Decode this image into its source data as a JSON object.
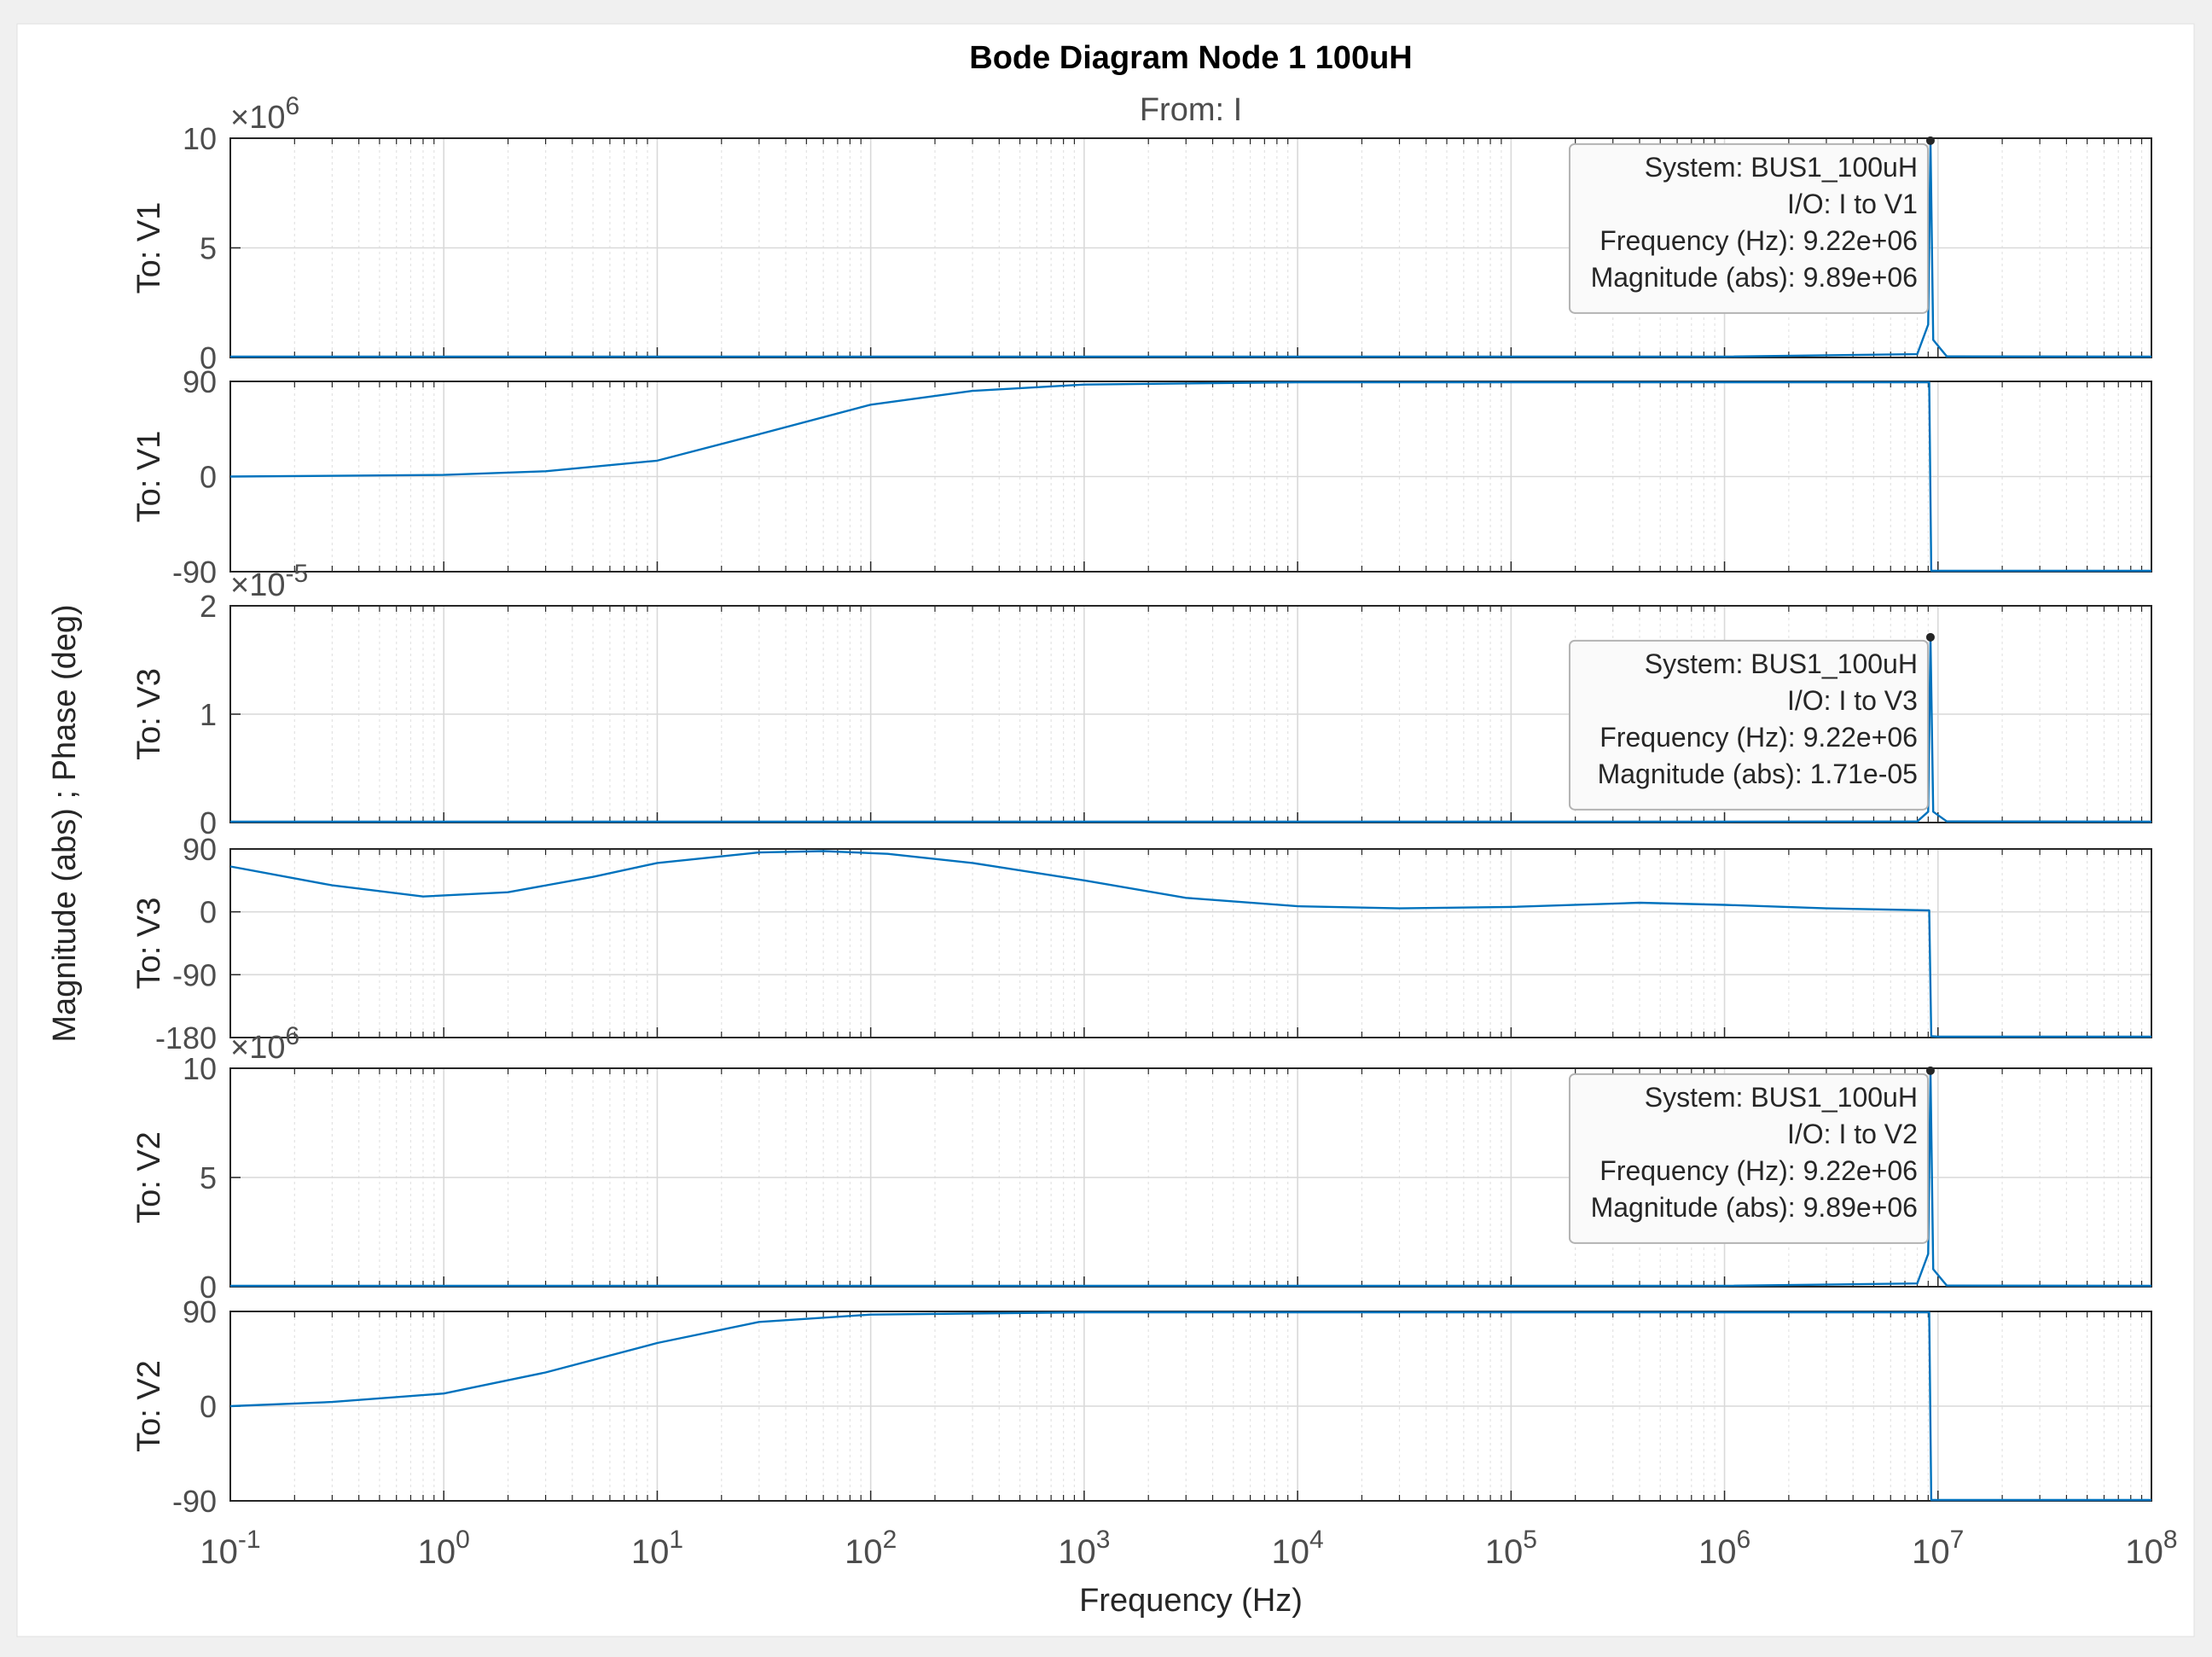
{
  "chart_data": {
    "type": "line",
    "title": "Bode Diagram Node 1 100uH",
    "subtitle": "From: I",
    "xlabel": "Frequency  (Hz)",
    "ylabel": "Magnitude (abs) ; Phase (deg)",
    "xscale": "log",
    "xlim": [
      0.1,
      100000000
    ],
    "xticks": [
      {
        "base": "10",
        "exp": "-1"
      },
      {
        "base": "10",
        "exp": "0"
      },
      {
        "base": "10",
        "exp": "1"
      },
      {
        "base": "10",
        "exp": "2"
      },
      {
        "base": "10",
        "exp": "3"
      },
      {
        "base": "10",
        "exp": "4"
      },
      {
        "base": "10",
        "exp": "5"
      },
      {
        "base": "10",
        "exp": "6"
      },
      {
        "base": "10",
        "exp": "7"
      },
      {
        "base": "10",
        "exp": "8"
      }
    ],
    "grid": true,
    "line_color": "#0072bd",
    "panels": [
      {
        "kind": "magnitude",
        "label": "To: V1",
        "ylim": [
          0,
          10
        ],
        "yticks": [
          "0",
          "5",
          "10"
        ],
        "exponent": {
          "base": "×10",
          "exp": "6"
        },
        "series": {
          "x": [
            0.1,
            1,
            1000,
            1000000,
            8000000,
            9000000,
            9220000,
            9500000,
            11000000,
            100000000
          ],
          "y": [
            0,
            0,
            0,
            0,
            0.15,
            1.5,
            9.89,
            0.8,
            0.05,
            0
          ]
        },
        "datatip": {
          "x": 9220000,
          "y": 9.89,
          "lines": [
            "System: BUS1_100uH",
            "I/O: I to V1",
            "Frequency (Hz): 9.22e+06",
            "Magnitude (abs): 9.89e+06"
          ]
        }
      },
      {
        "kind": "phase",
        "label": "To: V1",
        "ylim": [
          -90,
          90
        ],
        "yticks": [
          "-90",
          "0",
          "90"
        ],
        "series": {
          "x": [
            0.1,
            1,
            3,
            10,
            30,
            100,
            300,
            1000,
            10000,
            100000,
            1000000,
            9100000,
            9300000,
            10000000,
            100000000
          ],
          "y": [
            0,
            1.5,
            5,
            15,
            40,
            68,
            81,
            87,
            89.5,
            90,
            90,
            90,
            -90,
            -90,
            -90
          ]
        }
      },
      {
        "kind": "magnitude",
        "label": "To: V3",
        "ylim": [
          0,
          2
        ],
        "yticks": [
          "0",
          "1",
          "2"
        ],
        "exponent": {
          "base": "×10",
          "exp": "-5"
        },
        "series": {
          "x": [
            0.1,
            1,
            1000,
            1000000,
            8000000,
            9000000,
            9220000,
            9500000,
            11000000,
            100000000
          ],
          "y": [
            0,
            0,
            0,
            0,
            0.01,
            0.1,
            1.71,
            0.1,
            0.01,
            0
          ]
        },
        "datatip": {
          "x": 9220000,
          "y": 1.71,
          "lines": [
            "System: BUS1_100uH",
            "I/O: I to V3",
            "Frequency (Hz): 9.22e+06",
            "Magnitude (abs): 1.71e-05"
          ]
        }
      },
      {
        "kind": "phase",
        "label": "To: V3",
        "ylim": [
          -180,
          90
        ],
        "yticks": [
          "-180",
          "-90",
          "0",
          "90"
        ],
        "series": {
          "x": [
            0.1,
            0.3,
            0.8,
            2,
            5,
            10,
            30,
            60,
            120,
            300,
            1000,
            3000,
            10000,
            30000,
            100000,
            400000,
            1000000,
            3000000,
            9100000,
            9300000,
            10000000,
            100000000
          ],
          "y": [
            65,
            38,
            22,
            28,
            50,
            70,
            85,
            87,
            83,
            70,
            45,
            20,
            8,
            5,
            7,
            13,
            10,
            5,
            2,
            -178,
            -180,
            -180
          ]
        }
      },
      {
        "kind": "magnitude",
        "label": "To: V2",
        "ylim": [
          0,
          10
        ],
        "yticks": [
          "0",
          "5",
          "10"
        ],
        "exponent": {
          "base": "×10",
          "exp": "6"
        },
        "series": {
          "x": [
            0.1,
            1,
            1000,
            1000000,
            8000000,
            9000000,
            9220000,
            9500000,
            11000000,
            100000000
          ],
          "y": [
            0,
            0,
            0,
            0,
            0.15,
            1.5,
            9.89,
            0.8,
            0.05,
            0
          ]
        },
        "datatip": {
          "x": 9220000,
          "y": 9.89,
          "lines": [
            "System: BUS1_100uH",
            "I/O: I to V2",
            "Frequency (Hz): 9.22e+06",
            "Magnitude (abs): 9.89e+06"
          ]
        }
      },
      {
        "kind": "phase",
        "label": "To: V2",
        "ylim": [
          -90,
          90
        ],
        "yticks": [
          "-90",
          "0",
          "90"
        ],
        "series": {
          "x": [
            0.1,
            0.3,
            1,
            3,
            10,
            30,
            100,
            1000,
            10000,
            100000,
            1000000,
            9100000,
            9300000,
            10000000,
            100000000
          ],
          "y": [
            0,
            4,
            12,
            32,
            60,
            80,
            87,
            89.5,
            90,
            90,
            90,
            90,
            -90,
            -90,
            -90
          ]
        }
      }
    ]
  }
}
